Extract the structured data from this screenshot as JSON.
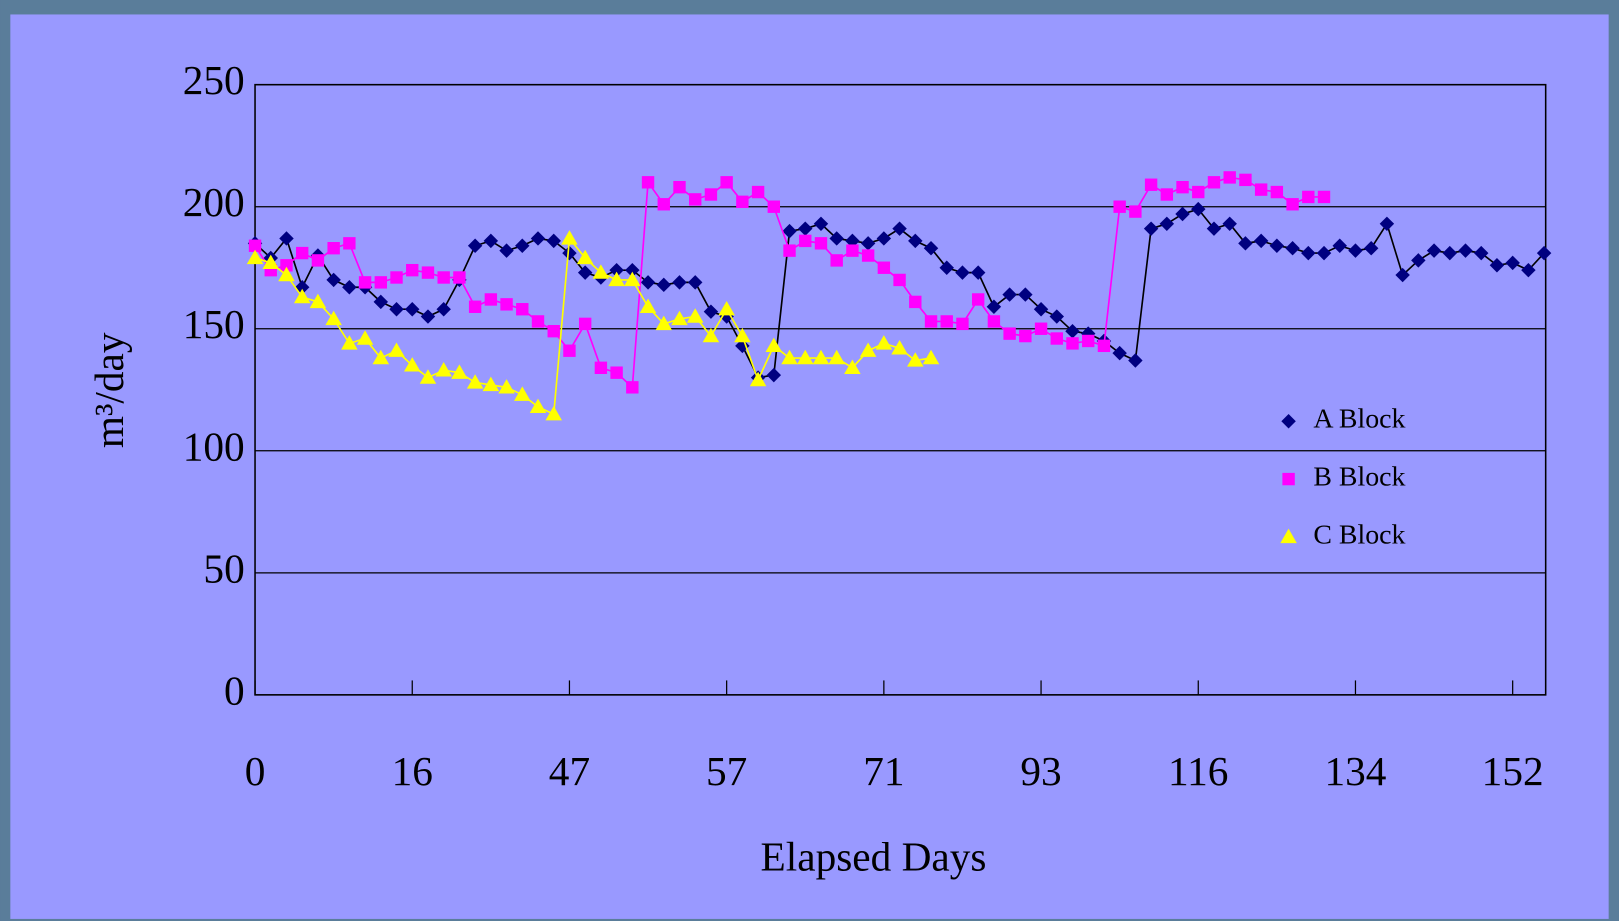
{
  "chart_data": {
    "type": "line",
    "xlabel": "Elapsed Days",
    "ylabel": "m³/day",
    "categories": [
      "0",
      null,
      null,
      null,
      null,
      null,
      null,
      null,
      null,
      null,
      "16",
      null,
      null,
      null,
      null,
      null,
      null,
      null,
      null,
      null,
      "47",
      null,
      null,
      null,
      null,
      null,
      null,
      null,
      null,
      null,
      "57",
      null,
      null,
      null,
      null,
      null,
      null,
      null,
      null,
      null,
      "71",
      null,
      null,
      null,
      null,
      null,
      null,
      null,
      null,
      null,
      "93",
      null,
      null,
      null,
      null,
      null,
      null,
      null,
      null,
      null,
      "116",
      null,
      null,
      null,
      null,
      null,
      null,
      null,
      null,
      null,
      "134",
      null,
      null,
      null,
      null,
      null,
      null,
      null,
      null,
      null,
      "152",
      null,
      null
    ],
    "series": [
      {
        "name": "A Block",
        "color": "#000080",
        "marker": "diamond",
        "values": [
          185,
          179,
          187,
          167,
          180,
          170,
          167,
          167,
          161,
          158,
          158,
          155,
          158,
          170,
          184,
          186,
          182,
          184,
          187,
          186,
          181,
          173,
          171,
          174,
          174,
          169,
          168,
          169,
          169,
          157,
          155,
          143,
          130,
          131,
          190,
          191,
          193,
          187,
          186,
          185,
          187,
          191,
          186,
          183,
          175,
          173,
          173,
          159,
          164,
          164,
          158,
          155,
          149,
          148,
          145,
          140,
          137,
          191,
          193,
          197,
          199,
          191,
          193,
          185,
          186,
          184,
          183,
          181,
          181,
          184,
          182,
          183,
          193,
          172,
          178,
          182,
          181,
          182,
          181,
          176,
          177,
          174,
          181
        ]
      },
      {
        "name": "B Block",
        "color": "#ff00ff",
        "marker": "square",
        "values": [
          184,
          174,
          176,
          181,
          178,
          183,
          185,
          169,
          169,
          171,
          174,
          173,
          171,
          171,
          159,
          162,
          160,
          158,
          153,
          149,
          141,
          152,
          134,
          132,
          126,
          210,
          201,
          208,
          203,
          205,
          210,
          202,
          206,
          200,
          182,
          186,
          185,
          178,
          182,
          180,
          175,
          170,
          161,
          153,
          153,
          152,
          162,
          153,
          148,
          147,
          150,
          146,
          144,
          145,
          143,
          200,
          198,
          209,
          205,
          208,
          206,
          210,
          212,
          211,
          207,
          206,
          201,
          204,
          204,
          null,
          null,
          null,
          null,
          null,
          null,
          null,
          null,
          null,
          null,
          null,
          null,
          null,
          null
        ]
      },
      {
        "name": "C Block",
        "color": "#ffff00",
        "marker": "triangle",
        "values": [
          179,
          177,
          172,
          163,
          161,
          154,
          144,
          146,
          138,
          141,
          135,
          130,
          133,
          132,
          128,
          127,
          126,
          123,
          118,
          115,
          187,
          179,
          173,
          170,
          170,
          159,
          152,
          154,
          155,
          147,
          158,
          147,
          129,
          143,
          138,
          138,
          138,
          138,
          134,
          141,
          144,
          142,
          137,
          138,
          null,
          null,
          null,
          null,
          null,
          null,
          null,
          null,
          null,
          null,
          null,
          null,
          null,
          null,
          null,
          null,
          null,
          null,
          null,
          null,
          null,
          null,
          null,
          null,
          null,
          null,
          null,
          null,
          null,
          null,
          null,
          null,
          null,
          null,
          null,
          null,
          null,
          null,
          null
        ]
      }
    ],
    "ylim": [
      0,
      250
    ],
    "yticks": [
      0,
      50,
      100,
      150,
      200,
      250
    ],
    "grid": true,
    "legend": "right"
  }
}
